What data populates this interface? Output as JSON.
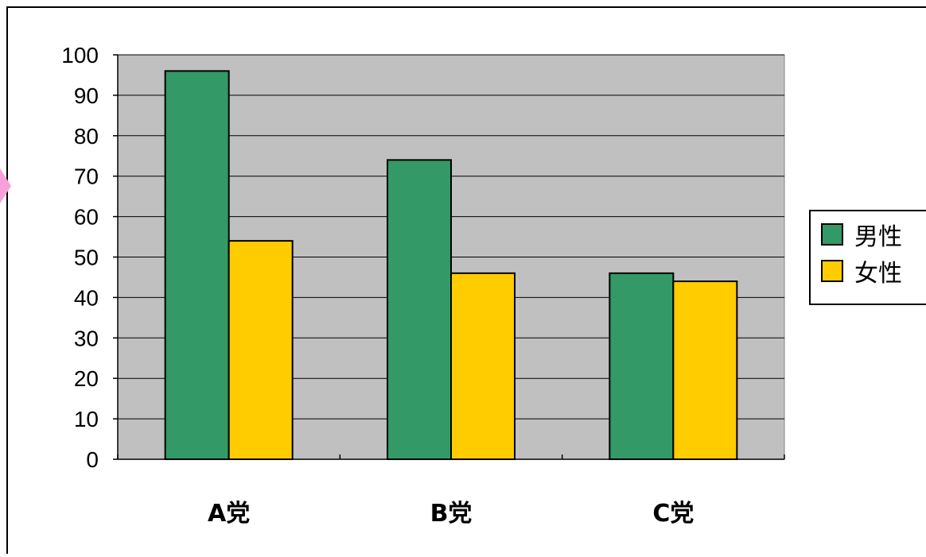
{
  "colors": {
    "plot_background": "#c0c0c0",
    "male": "#339966",
    "female": "#ffcc00",
    "axis": "#000000",
    "frame": "#000000",
    "page_background": "#ffffff"
  },
  "chart_data": {
    "type": "bar",
    "categories": [
      "A党",
      "B党",
      "C党"
    ],
    "series": [
      {
        "name": "男性",
        "values": [
          96,
          74,
          46
        ],
        "color": "#339966"
      },
      {
        "name": "女性",
        "values": [
          54,
          46,
          44
        ],
        "color": "#ffcc00"
      }
    ],
    "title": "",
    "xlabel": "",
    "ylabel": "",
    "ylim": [
      0,
      100
    ],
    "yticks": [
      0,
      10,
      20,
      30,
      40,
      50,
      60,
      70,
      80,
      90,
      100
    ],
    "ytick_labels": [
      "0",
      "10",
      "20",
      "30",
      "40",
      "50",
      "60",
      "70",
      "80",
      "90",
      "100"
    ],
    "grid": true,
    "legend_position": "right"
  }
}
